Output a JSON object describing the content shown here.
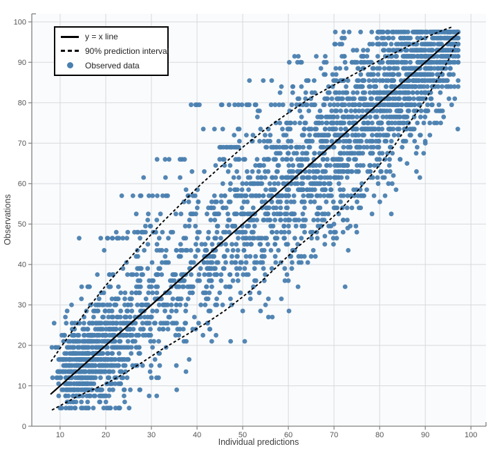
{
  "chart_data": {
    "type": "scatter",
    "title": "",
    "xlabel": "Individual predictions",
    "ylabel": "Observations",
    "xlim": [
      3.8,
      103.3
    ],
    "ylim": [
      0,
      102
    ],
    "x_ticks": [
      10,
      20,
      30,
      40,
      50,
      60,
      70,
      80,
      90,
      100
    ],
    "y_ticks": [
      0,
      10,
      20,
      30,
      40,
      50,
      60,
      70,
      80,
      90,
      100
    ],
    "grid": true,
    "legend": {
      "position": "top-left",
      "items": [
        {
          "label": "y = x line",
          "type": "solid-line"
        },
        {
          "label": "90% prediction interval",
          "type": "dashed-line"
        },
        {
          "label": "Observed data",
          "type": "marker"
        }
      ]
    },
    "identity_line": {
      "label": "y = x line",
      "style": "solid",
      "color": "#000000",
      "points": [
        [
          7.9,
          7.9
        ],
        [
          97.4,
          97.4
        ]
      ]
    },
    "prediction_interval": {
      "label": "90% prediction interval",
      "style": "dashed",
      "color": "#000000",
      "upper": [
        [
          8,
          16
        ],
        [
          12,
          22.5
        ],
        [
          16,
          29
        ],
        [
          20,
          34.8
        ],
        [
          24,
          40
        ],
        [
          28,
          45
        ],
        [
          32,
          50
        ],
        [
          36.5,
          55
        ],
        [
          41,
          60
        ],
        [
          45.5,
          64.5
        ],
        [
          50,
          69
        ],
        [
          55,
          73.5
        ],
        [
          60,
          77.5
        ],
        [
          65,
          81.3
        ],
        [
          71,
          85
        ],
        [
          76,
          88
        ],
        [
          80,
          90.5
        ],
        [
          84,
          92.7
        ],
        [
          88,
          95
        ],
        [
          91,
          96.6
        ],
        [
          93.5,
          97.8
        ],
        [
          96,
          98.8
        ]
      ],
      "lower": [
        [
          8.2,
          4
        ],
        [
          14,
          7.5
        ],
        [
          20,
          10.5
        ],
        [
          24,
          13
        ],
        [
          28,
          15.8
        ],
        [
          32,
          18.8
        ],
        [
          36,
          21.5
        ],
        [
          42,
          25.5
        ],
        [
          46,
          28.5
        ],
        [
          50,
          32
        ],
        [
          54,
          35.7
        ],
        [
          58,
          40
        ],
        [
          62,
          44.3
        ],
        [
          67,
          49
        ],
        [
          71,
          53
        ],
        [
          75,
          58
        ],
        [
          79,
          63.2
        ],
        [
          83,
          69
        ],
        [
          86.5,
          75
        ],
        [
          90,
          80.7
        ],
        [
          93,
          86.4
        ],
        [
          95.5,
          91.5
        ],
        [
          96.8,
          95
        ]
      ]
    },
    "observed": {
      "label": "Observed data",
      "color": "#4a80b0",
      "marker_radius": 3.4,
      "marker_opacity": 0.95,
      "x_range": [
        7.9,
        97.2
      ],
      "y_range": [
        4.5,
        97.5
      ],
      "y_quantize_step": 1.5,
      "seed": 1337,
      "clusters": [
        [
          13,
          13.5,
          2.2,
          4.5,
          240
        ],
        [
          17,
          16.5,
          2.4,
          5.5,
          310
        ],
        [
          22,
          21,
          3,
          7,
          190
        ],
        [
          28,
          27,
          3.5,
          8,
          120
        ],
        [
          35,
          34,
          4,
          9,
          110
        ],
        [
          43,
          42,
          4,
          10,
          130
        ],
        [
          50,
          49,
          4,
          10.5,
          150
        ],
        [
          57,
          56,
          4,
          11,
          190
        ],
        [
          64,
          63,
          4,
          10.5,
          240
        ],
        [
          71,
          70,
          4,
          10,
          290
        ],
        [
          78,
          77.5,
          4,
          9.5,
          310
        ],
        [
          85,
          84.5,
          3.5,
          8,
          290
        ],
        [
          90,
          89.5,
          3,
          6.5,
          230
        ],
        [
          94,
          93,
          2,
          4.5,
          140
        ],
        [
          96.3,
          96,
          1,
          2,
          70
        ]
      ],
      "streaks": [
        [
          57,
          25,
          58,
          20
        ],
        [
          79.5,
          38,
          72,
          24
        ],
        [
          66,
          30,
          63,
          16
        ],
        [
          69,
          44,
          62,
          16
        ],
        [
          48,
          25,
          33,
          10
        ],
        [
          46.5,
          14,
          24,
          9
        ],
        [
          37.5,
          13,
          46,
          16
        ],
        [
          30,
          12,
          40,
          14
        ],
        [
          22.5,
          10,
          31,
          12
        ],
        [
          90,
          58,
          96,
          16
        ],
        [
          85.5,
          50,
          94,
          14
        ],
        [
          61.5,
          27,
          66,
          12
        ],
        [
          73.5,
          40,
          80,
          12
        ],
        [
          52.5,
          21,
          56,
          12
        ],
        [
          43.5,
          15,
          50,
          10
        ],
        [
          34.5,
          12,
          44,
          10
        ],
        [
          25.5,
          11,
          36,
          10
        ],
        [
          16.5,
          9,
          26,
          9
        ],
        [
          13.5,
          9,
          22,
          8
        ],
        [
          7.5,
          10,
          20,
          8
        ],
        [
          4.5,
          10,
          23,
          8
        ],
        [
          94.5,
          70,
          97,
          12
        ],
        [
          97.5,
          87,
          97,
          8
        ]
      ],
      "extra_points": [
        [
          23.5,
          57
        ],
        [
          40,
          79.5
        ],
        [
          47,
          79.5
        ],
        [
          70,
          50
        ],
        [
          73,
          49
        ],
        [
          75,
          48
        ],
        [
          68,
          47
        ],
        [
          83,
          62
        ],
        [
          86,
          65
        ],
        [
          90,
          70
        ],
        [
          92,
          75
        ],
        [
          94,
          88.5
        ],
        [
          24,
          7.5
        ],
        [
          30,
          12
        ],
        [
          23,
          4.5
        ],
        [
          36,
          22.5
        ],
        [
          55,
          30
        ],
        [
          60,
          36
        ],
        [
          50,
          28.5
        ],
        [
          65,
          42
        ],
        [
          88,
          67.5
        ],
        [
          91,
          72
        ]
      ]
    },
    "colors": {
      "point": "#4a80b0",
      "line": "#000000",
      "grid": "#d7d9dd",
      "axis": "#808080",
      "tick_label": "#555555",
      "axis_title": "#3d3d3d",
      "plot_bg": "#fafbfc",
      "legend_border": "#000000",
      "legend_bg": "#ffffff"
    }
  }
}
